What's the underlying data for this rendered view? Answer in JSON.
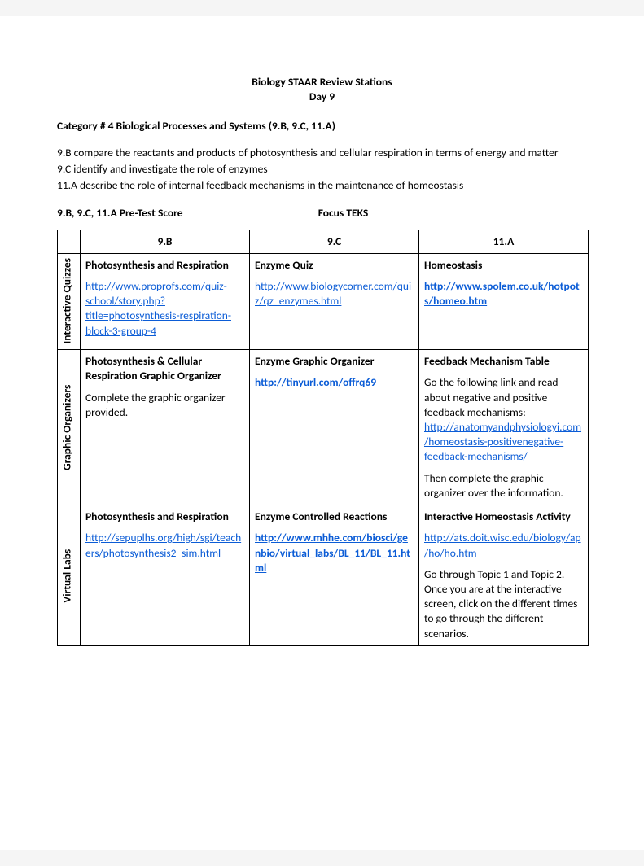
{
  "header": {
    "title": "Biology STAAR Review Stations",
    "subtitle": "Day 9",
    "category": "Category # 4 Biological Processes and Systems (9.B, 9.C, 11.A)"
  },
  "standards": {
    "s1": "9.B compare the reactants and products of photosynthesis and cellular respiration in terms of energy and matter",
    "s2": "9.C identify and investigate the role of enzymes",
    "s3": "11.A describe the role of internal feedback mechanisms in the maintenance of homeostasis"
  },
  "pretest": {
    "label1": "9.B, 9.C, 11.A Pre-Test Score",
    "label2": "Focus TEKS"
  },
  "table": {
    "cols": {
      "c1": "9.B",
      "c2": "9.C",
      "c3": "11.A"
    },
    "rowlabels": {
      "r1": "Interactive Quizzes",
      "r2": "Graphic Organizers",
      "r3": "Virtual Labs"
    },
    "r1c1": {
      "title": "Photosynthesis and Respiration",
      "link": "http://www.proprofs.com/quiz-school/story.php?title=photosynthesis-respiration-block-3-group-4"
    },
    "r1c2": {
      "title": "Enzyme Quiz",
      "link": "http://www.biologycorner.com/quiz/qz_enzymes.html"
    },
    "r1c3": {
      "title": "Homeostasis",
      "link": "http://www.spolem.co.uk/hotpots/homeo.htm"
    },
    "r2c1": {
      "title": "Photosynthesis & Cellular Respiration Graphic Organizer",
      "text": "Complete the graphic organizer provided."
    },
    "r2c2": {
      "title": "Enzyme Graphic Organizer",
      "link": "http://tinyurl.com/offrq69"
    },
    "r2c3": {
      "title": "Feedback Mechanism Table",
      "text1": "Go the following link and read about negative and positive feedback mechanisms:",
      "link": "http://anatomyandphysiologyi.com/homeostasis-positivenegative-feedback-mechanisms/",
      "text2": "Then complete the graphic organizer over the information."
    },
    "r3c1": {
      "title": "Photosynthesis and Respiration",
      "link": "http://sepuplhs.org/high/sgi/teachers/photosynthesis2_sim.html"
    },
    "r3c2": {
      "title": "Enzyme Controlled Reactions",
      "link": "http://www.mhhe.com/biosci/genbio/virtual_labs/BL_11/BL_11.html"
    },
    "r3c3": {
      "title": "Interactive Homeostasis Activity",
      "link": "http://ats.doit.wisc.edu/biology/ap/ho/ho.htm",
      "text": "Go through Topic 1 and Topic 2.  Once you are at the interactive screen, click on the different times to go through the different scenarios."
    }
  }
}
